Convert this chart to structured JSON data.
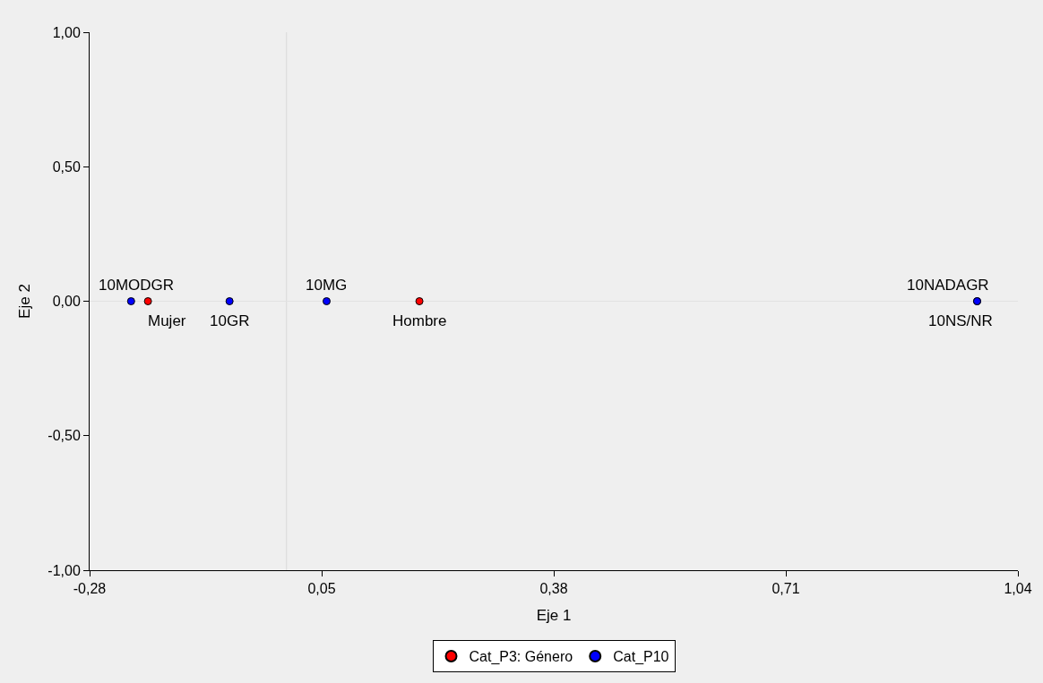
{
  "chart_data": {
    "type": "scatter",
    "xlabel": "Eje 1",
    "ylabel": "Eje 2",
    "xlim": [
      -0.28,
      1.04
    ],
    "xticks": [
      {
        "value": -0.28,
        "label": "-0,28"
      },
      {
        "value": 0.05,
        "label": "0,05"
      },
      {
        "value": 0.38,
        "label": "0,38"
      },
      {
        "value": 0.71,
        "label": "0,71"
      },
      {
        "value": 1.04,
        "label": "1,04"
      }
    ],
    "ylim": [
      -1,
      1
    ],
    "yticks": [
      {
        "value": -1,
        "label": "-1,00"
      },
      {
        "value": -0.5,
        "label": "-0,50"
      },
      {
        "value": 0,
        "label": "0,00"
      },
      {
        "value": 0.5,
        "label": "0,50"
      },
      {
        "value": 1,
        "label": "1,00"
      }
    ],
    "series": [
      {
        "name": "Cat_P3: Género",
        "color": "#ff0000",
        "x": [
          -0.197,
          0.189
        ],
        "values": [
          0,
          0
        ]
      },
      {
        "name": "Cat_P10",
        "color": "#0000ff",
        "x": [
          -0.221,
          -0.081,
          0.057,
          0.982,
          0.982
        ],
        "values": [
          0,
          0,
          0,
          0,
          0
        ]
      }
    ],
    "annotations": [
      {
        "text": "10MODGR",
        "x": -0.221,
        "y": 0
      },
      {
        "text": "Mujer",
        "x": -0.197,
        "y": 0
      },
      {
        "text": "10GR",
        "x": -0.081,
        "y": 0
      },
      {
        "text": "10MG",
        "x": 0.057,
        "y": 0
      },
      {
        "text": "Hombre",
        "x": 0.189,
        "y": 0
      },
      {
        "text": "10NADAGR",
        "x": 0.982,
        "y": 0
      },
      {
        "text": "10NS/NR",
        "x": 0.982,
        "y": 0
      }
    ],
    "ref_lines": [
      {
        "axis": "x",
        "value": 0,
        "color": "#d9d9d9"
      },
      {
        "axis": "y",
        "value": 0,
        "color": "#e2e2e2"
      }
    ],
    "marker": "circle",
    "legend": "bottom",
    "grid": false
  }
}
